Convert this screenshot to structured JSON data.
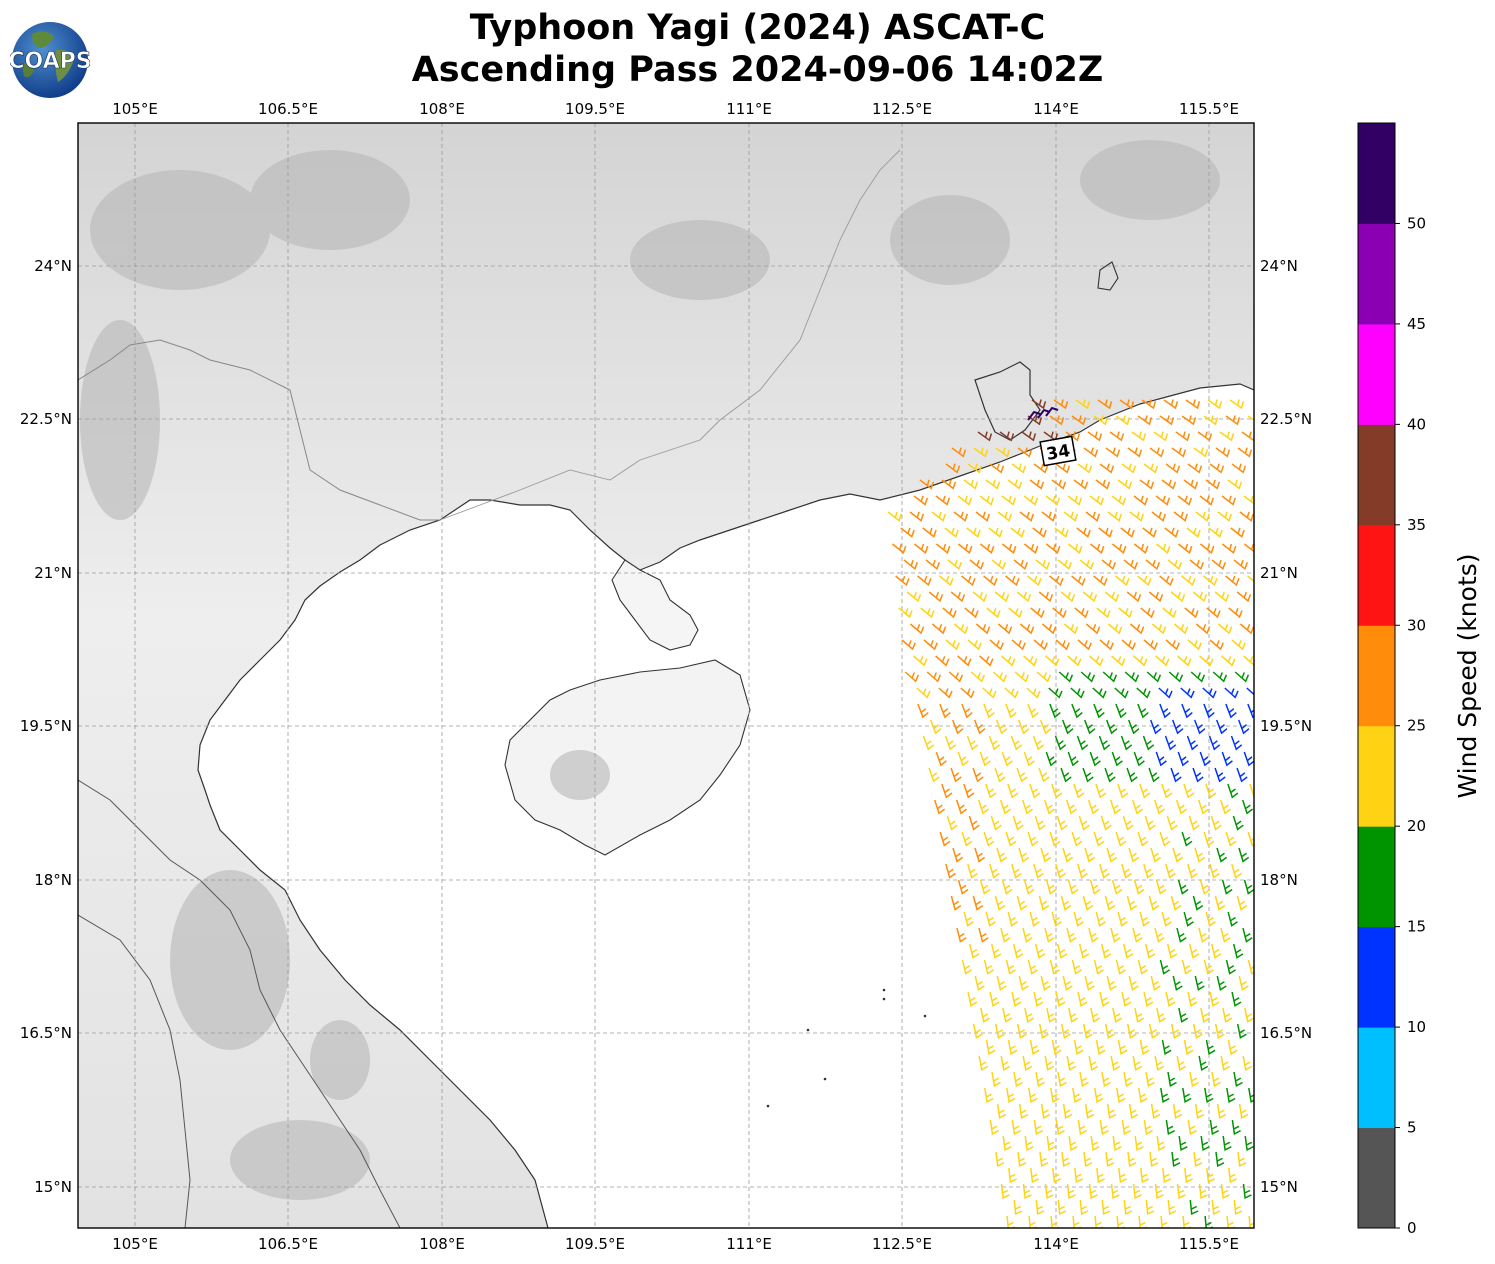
{
  "title_line1": "Typhoon Yagi (2024) ASCAT-C",
  "title_line2": "Ascending Pass 2024-09-06 14:02Z",
  "logo_text": "COAPS",
  "longitude_ticks": [
    "105°E",
    "106.5°E",
    "108°E",
    "109.5°E",
    "111°E",
    "112.5°E",
    "114°E",
    "115.5°E"
  ],
  "latitude_ticks": [
    "24°N",
    "22.5°N",
    "21°N",
    "19.5°N",
    "18°N",
    "16.5°N",
    "15°N"
  ],
  "storm_marker": "34",
  "colorbar": {
    "label": "Wind Speed (knots)",
    "ticks": [
      "0",
      "5",
      "10",
      "15",
      "20",
      "25",
      "30",
      "35",
      "40",
      "45",
      "50"
    ],
    "colors": [
      "#555555",
      "#00bfff",
      "#0033ff",
      "#009400",
      "#ffd314",
      "#ff8c0a",
      "#ff1414",
      "#843c28",
      "#ff00ff",
      "#8c00b4",
      "#320064"
    ]
  },
  "map": {
    "lon_range": [
      104.4,
      115.9
    ],
    "lat_range": [
      14.6,
      25.4
    ],
    "grid": "dashed",
    "basemap": "grayscale topography"
  }
}
